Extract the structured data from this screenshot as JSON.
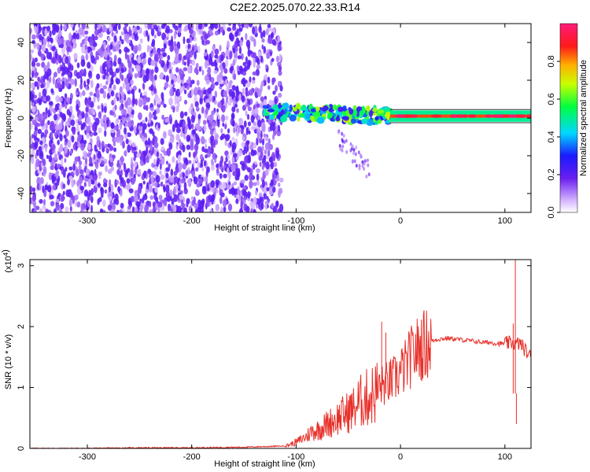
{
  "title": "C2E2.2025.070.22.33.R14",
  "colors": {
    "snr_line": "#e8302a",
    "tone_band": "#303030",
    "noise_purple": "#6a1ff0"
  },
  "chart_data": [
    {
      "type": "heatmap",
      "xlabel": "Height of straight line (km)",
      "ylabel": "Frequency (Hz)",
      "xlim": [
        -355,
        125
      ],
      "ylim": [
        -50,
        50
      ],
      "x_ticks": [
        -300,
        -200,
        -100,
        0,
        100
      ],
      "x_tick_labels": [
        "-300",
        "-200",
        "-100",
        "0",
        "100"
      ],
      "y_ticks": [
        -40,
        -20,
        0,
        20,
        40
      ],
      "y_tick_labels": [
        "-40",
        "-20",
        "0",
        "20",
        "40"
      ],
      "colorbar": {
        "label": "Normalized spectral amplitude",
        "range": [
          0,
          1
        ],
        "ticks": [
          0.0,
          0.2,
          0.4,
          0.6,
          0.8
        ],
        "tick_labels": [
          "0.0",
          "0.2",
          "0.4",
          "0.6",
          "0.8"
        ],
        "colormap": "rainbow (white-violet-blue-cyan-green-yellow-red-pink)"
      },
      "regions": [
        {
          "description": "broadband noise",
          "x_range": [
            -355,
            -120
          ],
          "freq_range": [
            -50,
            50
          ],
          "amplitude": 0.2
        },
        {
          "description": "carrier emerging",
          "x_range": [
            -130,
            -10
          ],
          "freq_center_start": 3,
          "freq_center_end": 1,
          "amplitude": 0.5
        },
        {
          "description": "stable carrier line",
          "x_range": [
            -10,
            125
          ],
          "freq_center": 1,
          "amplitude": 0.85
        }
      ]
    },
    {
      "type": "line",
      "xlabel": "Height of straight line (km)",
      "ylabel": "SNR (10 * v/v)",
      "y_multiplier_label": "(x10",
      "y_multiplier_exp": "4",
      "y_multiplier_close": ")",
      "xlim": [
        -355,
        125
      ],
      "ylim": [
        0,
        3.1
      ],
      "x_ticks": [
        -300,
        -200,
        -100,
        0,
        100
      ],
      "x_tick_labels": [
        "-300",
        "-200",
        "-100",
        "0",
        "100"
      ],
      "y_ticks": [
        0,
        1,
        2,
        3
      ],
      "y_tick_labels": [
        "0",
        "1",
        "2",
        "3"
      ],
      "series": [
        {
          "x": [
            -355,
            -300,
            -250,
            -200,
            -150,
            -110,
            -100,
            -95,
            -90,
            -85,
            -80,
            -75,
            -70,
            -65,
            -60,
            -55,
            -50,
            -45,
            -40,
            -35,
            -30,
            -25,
            -20,
            -15,
            -10,
            -5,
            0,
            5,
            10,
            15,
            20,
            25,
            30,
            35,
            40,
            45,
            50,
            55,
            60,
            65,
            70,
            75,
            80,
            85,
            90,
            95,
            100,
            105,
            108,
            110,
            112,
            115,
            120,
            125
          ],
          "y": [
            0.0,
            0.0,
            0.01,
            0.01,
            0.02,
            0.04,
            0.1,
            0.15,
            0.2,
            0.28,
            0.3,
            0.35,
            0.4,
            0.45,
            0.5,
            0.55,
            0.6,
            0.65,
            0.75,
            0.8,
            0.85,
            0.9,
            1.0,
            1.05,
            1.1,
            1.15,
            1.25,
            1.35,
            1.5,
            1.6,
            1.68,
            1.72,
            1.76,
            1.79,
            1.8,
            1.81,
            1.8,
            1.79,
            1.78,
            1.77,
            1.76,
            1.75,
            1.74,
            1.74,
            1.73,
            1.72,
            1.72,
            1.73,
            1.75,
            1.7,
            1.72,
            1.72,
            1.6,
            1.5
          ]
        }
      ]
    }
  ]
}
